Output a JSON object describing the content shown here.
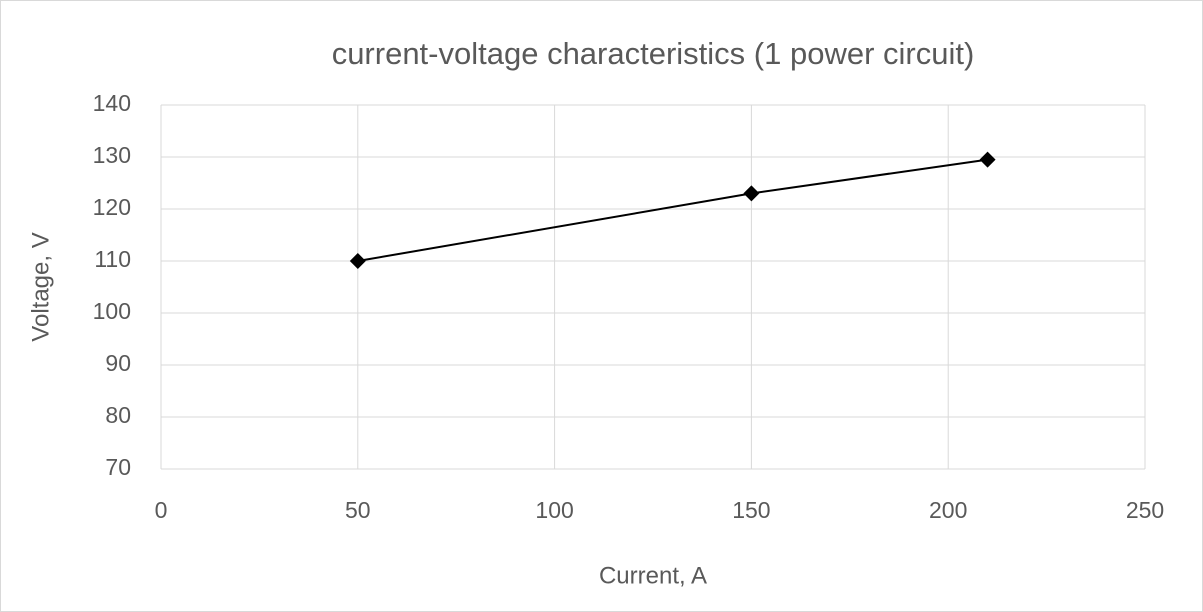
{
  "chart_data": {
    "type": "line",
    "title": "current-voltage characteristics (1 power circuit)",
    "x_label": "Current, A",
    "y_label": "Voltage, V",
    "x": [
      50,
      150,
      210
    ],
    "series": [
      {
        "color": "#000000",
        "values": [
          110,
          123,
          129.5
        ]
      }
    ],
    "xlim": [
      0,
      250
    ],
    "xticks": [
      0,
      50,
      100,
      150,
      200,
      250
    ],
    "ylim": [
      70,
      140
    ],
    "yticks": [
      70,
      80,
      90,
      100,
      110,
      120,
      130,
      140
    ],
    "grid": true,
    "markers": "diamond"
  }
}
